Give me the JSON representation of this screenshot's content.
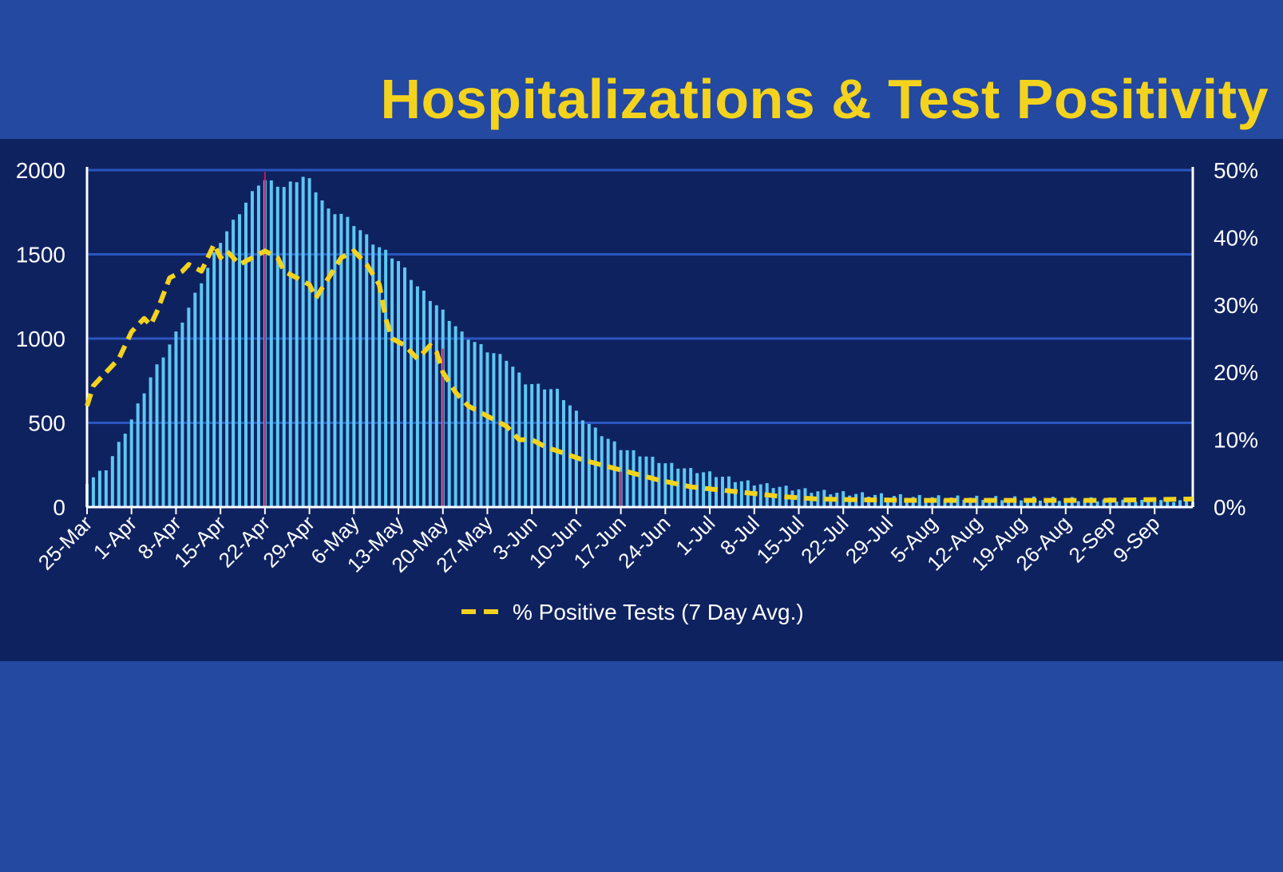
{
  "slide": {
    "title": "Hospitalizations & Test Positivity"
  },
  "colors": {
    "background": "#2449a0",
    "panel": "#0f2260",
    "title": "#f4d31e",
    "bars": "#5cc8f2",
    "line": "#f4d31e",
    "grid": "#2a56c0",
    "marker": "#c2185b"
  },
  "chart_data": {
    "type": "bar",
    "title": "Hospitalizations & Test Positivity",
    "start_date": "2020-03-25",
    "y_left": {
      "min": 0,
      "max": 2000,
      "ticks": [
        "0",
        "500",
        "1000",
        "1500",
        "2000"
      ]
    },
    "y_right": {
      "min": 0,
      "max": 50,
      "ticks": [
        "0%",
        "10%",
        "20%",
        "30%",
        "40%",
        "50%"
      ]
    },
    "x_tick_labels": [
      "25-Mar",
      "1-Apr",
      "8-Apr",
      "15-Apr",
      "22-Apr",
      "29-Apr",
      "6-May",
      "13-May",
      "20-May",
      "27-May",
      "3-Jun",
      "10-Jun",
      "17-Jun",
      "24-Jun",
      "1-Jul",
      "8-Jul",
      "15-Jul",
      "22-Jul",
      "29-Jul",
      "5-Aug",
      "12-Aug",
      "19-Aug",
      "26-Aug",
      "2-Sep",
      "9-Sep"
    ],
    "grid": true,
    "legend": {
      "position": "bottom-center",
      "entries": [
        "% Positive Tests (7 Day Avg.)"
      ]
    },
    "hospitalizations_anchors": [
      [
        0,
        150
      ],
      [
        3,
        230
      ],
      [
        7,
        520
      ],
      [
        10,
        770
      ],
      [
        14,
        1030
      ],
      [
        17,
        1260
      ],
      [
        21,
        1580
      ],
      [
        24,
        1750
      ],
      [
        27,
        1920
      ],
      [
        28,
        1940
      ],
      [
        31,
        1900
      ],
      [
        34,
        1960
      ],
      [
        35,
        1940
      ],
      [
        38,
        1760
      ],
      [
        40,
        1740
      ],
      [
        42,
        1680
      ],
      [
        45,
        1570
      ],
      [
        49,
        1460
      ],
      [
        52,
        1310
      ],
      [
        56,
        1160
      ],
      [
        59,
        1030
      ],
      [
        63,
        930
      ],
      [
        66,
        880
      ],
      [
        69,
        740
      ],
      [
        74,
        690
      ],
      [
        77,
        560
      ],
      [
        80,
        460
      ],
      [
        84,
        350
      ],
      [
        88,
        300
      ],
      [
        91,
        260
      ],
      [
        95,
        220
      ],
      [
        98,
        200
      ],
      [
        102,
        160
      ],
      [
        105,
        140
      ],
      [
        109,
        120
      ],
      [
        113,
        100
      ],
      [
        116,
        90
      ],
      [
        120,
        80
      ],
      [
        125,
        70
      ],
      [
        130,
        60
      ],
      [
        140,
        55
      ],
      [
        160,
        45
      ],
      [
        174,
        40
      ]
    ],
    "positivity_anchors": [
      [
        0,
        15
      ],
      [
        1,
        18
      ],
      [
        3,
        20
      ],
      [
        5,
        22
      ],
      [
        6,
        24
      ],
      [
        7,
        26
      ],
      [
        9,
        28
      ],
      [
        10,
        27
      ],
      [
        11,
        29
      ],
      [
        13,
        34
      ],
      [
        15,
        35
      ],
      [
        16,
        36
      ],
      [
        18,
        35
      ],
      [
        19,
        37
      ],
      [
        20,
        39
      ],
      [
        21,
        37
      ],
      [
        22,
        38
      ],
      [
        24,
        36
      ],
      [
        26,
        37
      ],
      [
        28,
        38
      ],
      [
        30,
        37
      ],
      [
        31,
        35
      ],
      [
        33,
        34
      ],
      [
        35,
        33
      ],
      [
        36,
        31
      ],
      [
        38,
        34
      ],
      [
        40,
        37
      ],
      [
        42,
        38
      ],
      [
        44,
        36
      ],
      [
        46,
        33
      ],
      [
        47,
        28
      ],
      [
        48,
        25
      ],
      [
        50,
        24
      ],
      [
        52,
        22
      ],
      [
        54,
        24
      ],
      [
        55,
        23
      ],
      [
        56,
        20
      ],
      [
        58,
        17
      ],
      [
        60,
        15
      ],
      [
        62,
        14
      ],
      [
        64,
        13
      ],
      [
        66,
        12
      ],
      [
        68,
        10
      ],
      [
        70,
        10
      ],
      [
        72,
        9
      ],
      [
        75,
        8
      ],
      [
        78,
        7
      ],
      [
        82,
        6
      ],
      [
        86,
        5
      ],
      [
        90,
        4
      ],
      [
        95,
        3
      ],
      [
        100,
        2.5
      ],
      [
        105,
        2
      ],
      [
        110,
        1.5
      ],
      [
        115,
        1.2
      ],
      [
        120,
        1.1
      ],
      [
        130,
        1
      ],
      [
        140,
        1
      ],
      [
        150,
        1
      ],
      [
        160,
        1
      ],
      [
        174,
        1.2
      ]
    ]
  }
}
